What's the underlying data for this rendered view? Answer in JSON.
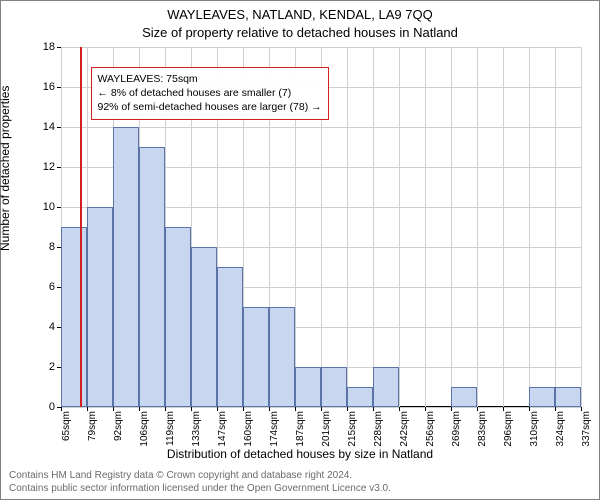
{
  "titles": {
    "line1": "WAYLEAVES, NATLAND, KENDAL, LA9 7QQ",
    "line2": "Size of property relative to detached houses in Natland"
  },
  "axis": {
    "xlabel": "Distribution of detached houses by size in Natland",
    "ylabel": "Number of detached properties"
  },
  "footnote": {
    "l1": "Contains HM Land Registry data © Crown copyright and database right 2024.",
    "l2": "Contains public sector information licensed under the Open Government Licence v3.0."
  },
  "chart": {
    "type": "histogram",
    "ylim": [
      0,
      18
    ],
    "ytick_step": 2,
    "yticks": [
      0,
      2,
      4,
      6,
      8,
      10,
      12,
      14,
      16,
      18
    ],
    "xticks": [
      "65sqm",
      "79sqm",
      "92sqm",
      "106sqm",
      "119sqm",
      "133sqm",
      "147sqm",
      "160sqm",
      "174sqm",
      "187sqm",
      "201sqm",
      "215sqm",
      "228sqm",
      "242sqm",
      "256sqm",
      "269sqm",
      "283sqm",
      "296sqm",
      "310sqm",
      "324sqm",
      "337sqm"
    ],
    "n_xticks": 21,
    "first_bar_at_tick": 0,
    "values": [
      9,
      10,
      14,
      13,
      9,
      8,
      7,
      5,
      5,
      2,
      2,
      1,
      2,
      0,
      0,
      1,
      0,
      0,
      1,
      1
    ],
    "bar_fill": "#c9d6ef",
    "bar_stroke": "#5a74a8",
    "grid_color": "#d0d0d0",
    "refline_color": "#d02020",
    "refline_tick_index": 0.75,
    "annotation": {
      "border_color": "#d02020",
      "line1": "WAYLEAVES: 75sqm",
      "line2": "← 8% of detached houses are smaller (7)",
      "line3": "92% of semi-detached houses are larger (78) →"
    },
    "label_fontsize": 12,
    "tick_fontsize": 11
  }
}
